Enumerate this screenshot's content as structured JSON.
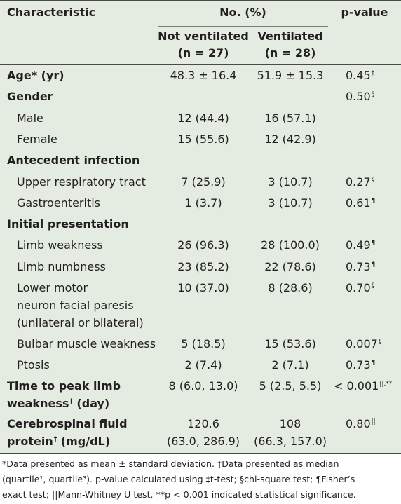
{
  "header": {
    "characteristic": "Characteristic",
    "group": "No. (%)",
    "pvalue": "p-value",
    "col1_name": "Not ventilated",
    "col1_n": "(n = 27)",
    "col2_name": "Ventilated",
    "col2_n": "(n = 28)"
  },
  "rows": {
    "age": {
      "label": "Age* (yr)",
      "v1": "48.3 ± 16.4",
      "v2": "51.9 ± 15.3",
      "p": "0.45",
      "p_mark": "‡"
    },
    "gender": {
      "label": "Gender",
      "p": "0.50",
      "p_mark": "§"
    },
    "male": {
      "label": "Male",
      "v1": "12 (44.4)",
      "v2": "16 (57.1)"
    },
    "female": {
      "label": "Female",
      "v1": "15 (55.6)",
      "v2": "12 (42.9)"
    },
    "antecedent": {
      "label": "Antecedent infection"
    },
    "urt": {
      "label": "Upper respiratory tract",
      "v1": "7 (25.9)",
      "v2": "3 (10.7)",
      "p": "0.27",
      "p_mark": "§"
    },
    "gastro": {
      "label": "Gastroenteritis",
      "v1": "1 (3.7)",
      "v2": "3 (10.7)",
      "p": "0.61",
      "p_mark": "¶"
    },
    "initial": {
      "label": "Initial presentation"
    },
    "limb_weak": {
      "label": "Limb weakness",
      "v1": "26 (96.3)",
      "v2": "28 (100.0)",
      "p": "0.49",
      "p_mark": "¶"
    },
    "limb_numb": {
      "label": "Limb numbness",
      "v1": "23 (85.2)",
      "v2": "22 (78.6)",
      "p": "0.73",
      "p_mark": "¶"
    },
    "lmn": {
      "label_1": "Lower motor",
      "label_2": "neuron facial paresis",
      "label_3": "(unilateral or bilateral)",
      "v1": "10 (37.0)",
      "v2": "8 (28.6)",
      "p": "0.70",
      "p_mark": "§"
    },
    "bulbar": {
      "label": "Bulbar muscle weakness",
      "v1": "5 (18.5)",
      "v2": "15 (53.6)",
      "p": "0.007",
      "p_mark": "§"
    },
    "ptosis": {
      "label": "Ptosis",
      "v1": "2 (7.4)",
      "v2": "2 (7.1)",
      "p": "0.73",
      "p_mark": "¶"
    },
    "ttp": {
      "label_1": "Time to peak limb",
      "label_2": "weakness",
      "label_mark": "†",
      "label_3": " (day)",
      "v1": "8 (6.0, 13.0)",
      "v2": "5 (2.5, 5.5)",
      "p": "< 0.001",
      "p_mark": "||,**"
    },
    "csf": {
      "label_1": "Cerebrospinal fluid",
      "label_2": "protein",
      "label_mark": "†",
      "label_3": " (mg/dL)",
      "v1_1": "120.6",
      "v1_2": "(63.0, 286.9)",
      "v2_1": "108",
      "v2_2": "(66.3, 157.0)",
      "p": "0.80",
      "p_mark": "||"
    }
  },
  "footnote": {
    "line1": "*Data presented as mean ± standard deviation. †Data presented as median",
    "line2": "(quartile¹, quartile³). p-value calculated using ‡t-test; §chi-square test; ¶Fisher’s",
    "line3": "exact test; ||Mann-Whitney U test. **p < 0.001 indicated statistical significance."
  }
}
